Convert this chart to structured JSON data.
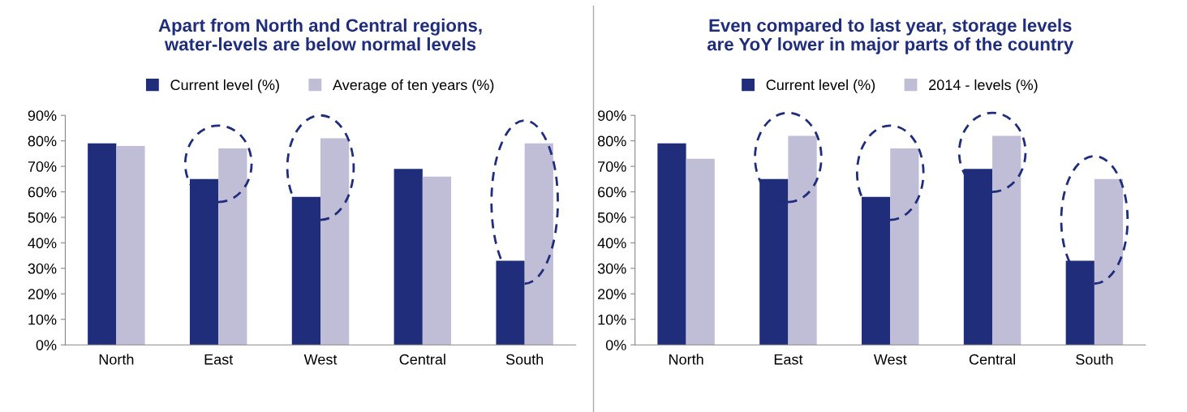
{
  "chart_data": [
    {
      "type": "bar",
      "title": "Apart from North and Central regions, water-levels are below normal levels",
      "categories": [
        "North",
        "East",
        "West",
        "Central",
        "South"
      ],
      "series": [
        {
          "name": "Current level (%)",
          "color": "#1f2d7b",
          "values": [
            79,
            65,
            58,
            69,
            33
          ]
        },
        {
          "name": "Average of ten years (%)",
          "color": "#c0bdd6",
          "values": [
            78,
            77,
            81,
            66,
            79
          ]
        }
      ],
      "ylim": [
        0,
        90
      ],
      "yticks": [
        {
          "value": 0,
          "label": "0%"
        },
        {
          "value": 10,
          "label": "10%"
        },
        {
          "value": 20,
          "label": "20%"
        },
        {
          "value": 30,
          "label": "30%"
        },
        {
          "value": 40,
          "label": "40%"
        },
        {
          "value": 50,
          "label": "50%"
        },
        {
          "value": 60,
          "label": "60%"
        },
        {
          "value": 70,
          "label": "70%"
        },
        {
          "value": 80,
          "label": "80%"
        },
        {
          "value": 90,
          "label": "90%"
        }
      ],
      "legend": "top",
      "grid": false
    },
    {
      "type": "bar",
      "title": "Even compared to last year, storage levels are YoY lower in major parts of the country",
      "categories": [
        "North",
        "East",
        "West",
        "Central",
        "South"
      ],
      "series": [
        {
          "name": "Current level (%)",
          "color": "#1f2d7b",
          "values": [
            79,
            65,
            58,
            69,
            33
          ]
        },
        {
          "name": "2014 - levels (%)",
          "color": "#c0bdd6",
          "values": [
            73,
            82,
            77,
            82,
            65
          ]
        }
      ],
      "ylim": [
        0,
        90
      ],
      "yticks": [
        {
          "value": 0,
          "label": "0%"
        },
        {
          "value": 10,
          "label": "10%"
        },
        {
          "value": 20,
          "label": "20%"
        },
        {
          "value": 30,
          "label": "30%"
        },
        {
          "value": 40,
          "label": "40%"
        },
        {
          "value": 50,
          "label": "50%"
        },
        {
          "value": 60,
          "label": "60%"
        },
        {
          "value": 70,
          "label": "70%"
        },
        {
          "value": 80,
          "label": "80%"
        },
        {
          "value": 90,
          "label": "90%"
        }
      ],
      "legend": "top",
      "grid": false
    }
  ]
}
